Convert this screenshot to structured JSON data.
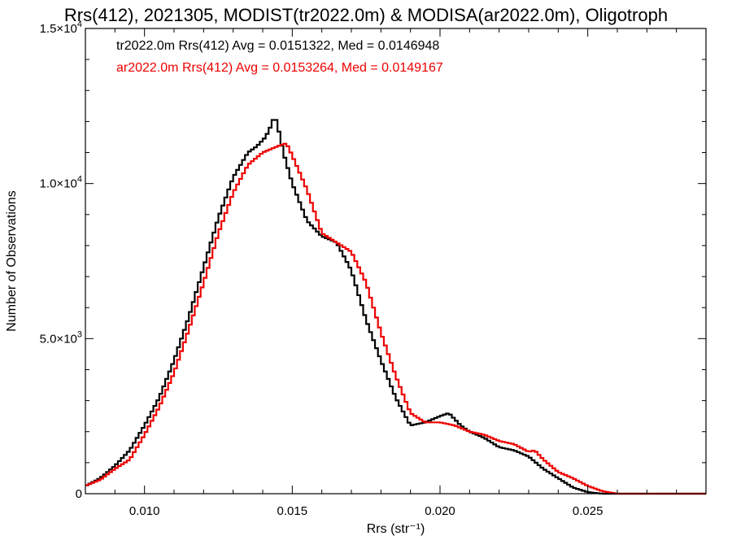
{
  "chart_data": {
    "type": "line",
    "title": "Rrs(412), 2021305, MODIST(tr2022.0m) & MODISA(ar2022.0m), Oligotroph",
    "xlabel": "Rrs (str⁻¹)",
    "ylabel": "Number of Observations",
    "xlim": [
      0.008,
      0.029
    ],
    "ylim": [
      0,
      15000
    ],
    "x_ticks": [
      0.01,
      0.015,
      0.02,
      0.025
    ],
    "x_tick_labels": [
      "0.010",
      "0.015",
      "0.020",
      "0.025"
    ],
    "y_ticks": [
      0,
      5000,
      10000,
      15000
    ],
    "y_tick_labels": [
      {
        "mant": "0",
        "exp": ""
      },
      {
        "mant": "5.0×10",
        "exp": "3"
      },
      {
        "mant": "1.0×10",
        "exp": "4"
      },
      {
        "mant": "1.5×10",
        "exp": "4"
      }
    ],
    "grid": false,
    "annotations": [
      {
        "text": "tr2022.0m Rrs(412) Avg = 0.0151322, Med = 0.0146948",
        "color": "#000000"
      },
      {
        "text": "ar2022.0m Rrs(412) Avg = 0.0153264, Med = 0.0149167",
        "color": "#ee0000"
      }
    ],
    "series": [
      {
        "color": "#000000",
        "x": [
          0.008,
          0.0085,
          0.009,
          0.0095,
          0.01,
          0.0105,
          0.011,
          0.0115,
          0.012,
          0.0125,
          0.013,
          0.0135,
          0.0138,
          0.0141,
          0.0143,
          0.0144,
          0.0145,
          0.0147,
          0.015,
          0.0155,
          0.016,
          0.0165,
          0.017,
          0.0175,
          0.018,
          0.0185,
          0.019,
          0.0195,
          0.02,
          0.0203,
          0.0207,
          0.021,
          0.0215,
          0.022,
          0.0225,
          0.023,
          0.0235,
          0.024,
          0.0245,
          0.025,
          0.0255,
          0.026,
          0.0265,
          0.029
        ],
        "y": [
          250,
          500,
          900,
          1400,
          2200,
          3100,
          4300,
          5700,
          7300,
          8900,
          10200,
          11000,
          11200,
          11500,
          11900,
          12200,
          11900,
          11000,
          10000,
          8800,
          8300,
          8100,
          7200,
          5600,
          4300,
          3100,
          2200,
          2300,
          2500,
          2600,
          2200,
          2000,
          1800,
          1500,
          1400,
          1200,
          800,
          500,
          200,
          50,
          0,
          0,
          0,
          0
        ]
      },
      {
        "color": "#ee0000",
        "x": [
          0.008,
          0.0085,
          0.009,
          0.0095,
          0.01,
          0.0105,
          0.011,
          0.0115,
          0.012,
          0.0125,
          0.013,
          0.0135,
          0.014,
          0.0145,
          0.0148,
          0.015,
          0.0155,
          0.016,
          0.0165,
          0.017,
          0.0175,
          0.018,
          0.0185,
          0.019,
          0.0195,
          0.02,
          0.0205,
          0.021,
          0.0215,
          0.022,
          0.0225,
          0.023,
          0.0232,
          0.0235,
          0.024,
          0.0245,
          0.025,
          0.0255,
          0.026,
          0.0265,
          0.029
        ],
        "y": [
          250,
          450,
          800,
          1100,
          1900,
          2800,
          3900,
          5300,
          6800,
          8400,
          9700,
          10600,
          11000,
          11200,
          11300,
          10900,
          9800,
          8400,
          8100,
          7800,
          6800,
          5200,
          3800,
          2600,
          2300,
          2300,
          2200,
          2000,
          1900,
          1700,
          1600,
          1350,
          1400,
          1100,
          700,
          500,
          250,
          80,
          0,
          0,
          0
        ]
      }
    ]
  }
}
